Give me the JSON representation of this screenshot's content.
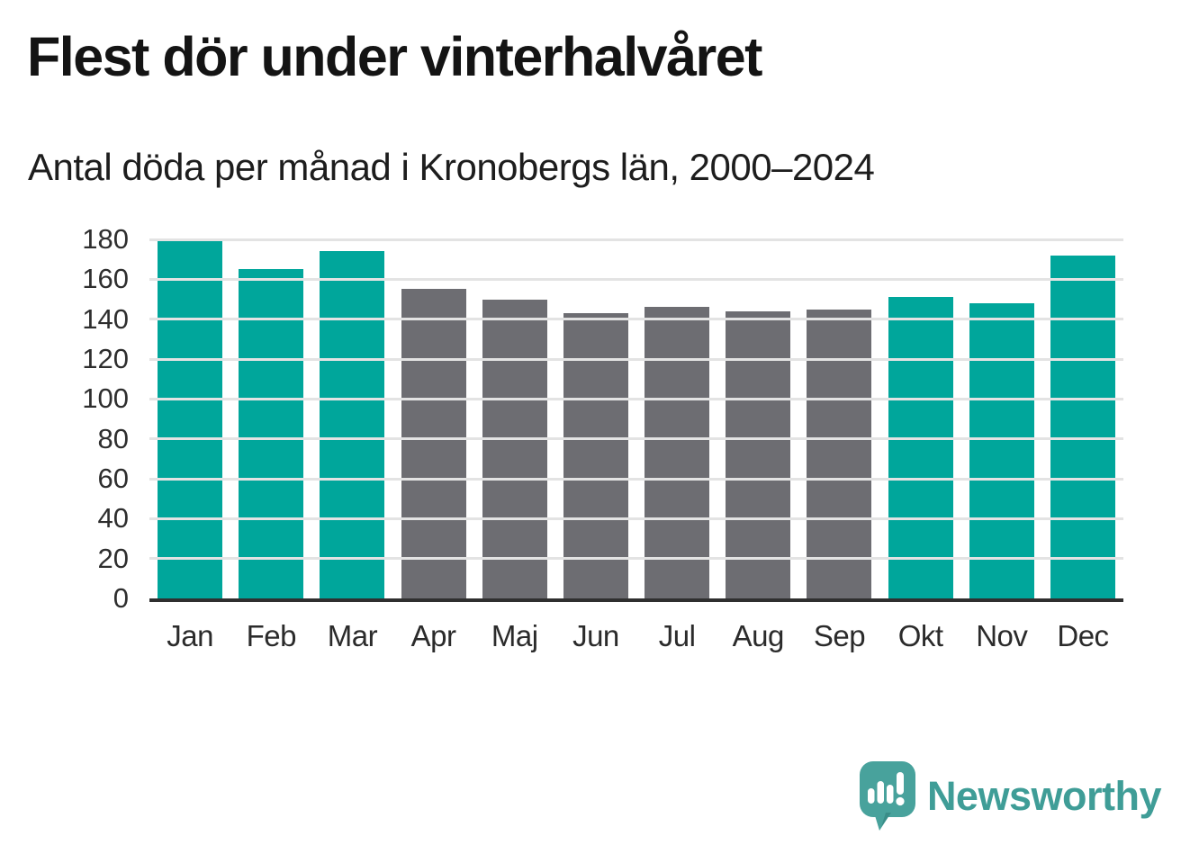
{
  "chart_data": {
    "type": "bar",
    "title": "Flest dör under vinterhalvåret",
    "subtitle": "Antal döda per månad i Kronobergs län, 2000–2024",
    "categories": [
      "Jan",
      "Feb",
      "Mar",
      "Apr",
      "Maj",
      "Jun",
      "Jul",
      "Aug",
      "Sep",
      "Okt",
      "Nov",
      "Dec"
    ],
    "values": [
      180,
      165,
      174,
      155,
      150,
      143,
      146,
      144,
      145,
      151,
      148,
      172
    ],
    "bar_groups": [
      "winter",
      "winter",
      "winter",
      "summer",
      "summer",
      "summer",
      "summer",
      "summer",
      "summer",
      "winter",
      "winter",
      "winter"
    ],
    "group_colors": {
      "winter": "#00a69b",
      "summer": "#6d6d72"
    },
    "xlabel": "",
    "ylabel": "",
    "ylim": [
      0,
      180
    ],
    "yticks": [
      0,
      20,
      40,
      60,
      80,
      100,
      120,
      140,
      160,
      180
    ],
    "grid": true,
    "legend_position": "none"
  },
  "footer": {
    "brand": "Newsworthy"
  },
  "theme": {
    "background": "#ffffff",
    "gridline_color": "#e3e3e3",
    "axis_line_color": "#2f2f2f",
    "tick_label_color": "#2e2e2e",
    "title_color": "#141414",
    "logo_text_color": "#3f9d97",
    "logo_bubble_color": "#48a29c"
  }
}
